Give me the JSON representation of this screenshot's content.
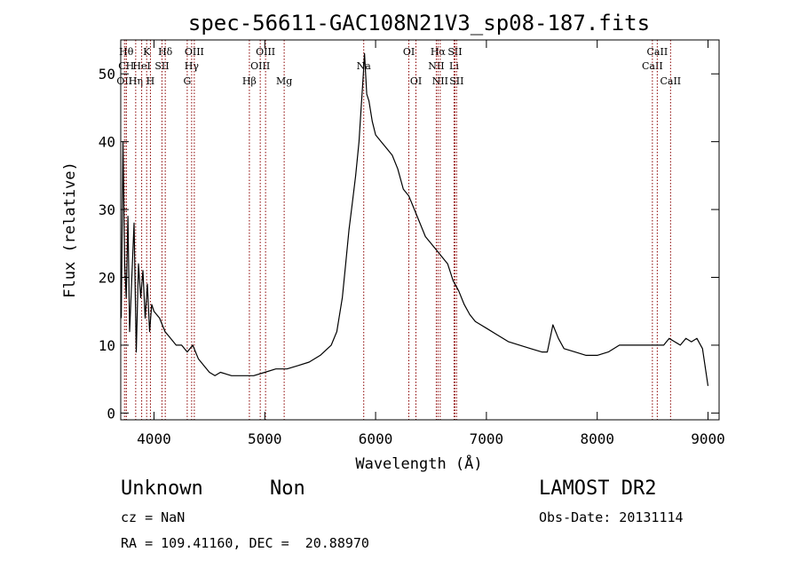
{
  "chart_data": {
    "type": "line",
    "title": "spec-56611-GAC108N21V3_sp08-187.fits",
    "xlabel": "Wavelength (Å)",
    "ylabel": "Flux (relative)",
    "xlim": [
      3700,
      9100
    ],
    "ylim": [
      -1,
      55
    ],
    "xticks": [
      4000,
      5000,
      6000,
      7000,
      8000,
      9000
    ],
    "yticks": [
      0,
      10,
      20,
      30,
      40,
      50
    ],
    "grid": false,
    "line_color": "#000000",
    "marker_line_color": "#8b0000",
    "series": [
      {
        "x": [
          3705,
          3720,
          3735,
          3750,
          3765,
          3780,
          3800,
          3820,
          3840,
          3860,
          3880,
          3900,
          3920,
          3940,
          3960,
          3980,
          4000,
          4050,
          4100,
          4150,
          4200,
          4250,
          4300,
          4350,
          4400,
          4450,
          4500,
          4550,
          4600,
          4700,
          4800,
          4900,
          5000,
          5100,
          5200,
          5300,
          5400,
          5500,
          5600,
          5650,
          5700,
          5730,
          5760,
          5790,
          5820,
          5850,
          5870,
          5890,
          5900,
          5920,
          5940,
          5970,
          6000,
          6050,
          6100,
          6150,
          6200,
          6250,
          6300,
          6350,
          6400,
          6450,
          6500,
          6550,
          6600,
          6650,
          6700,
          6750,
          6800,
          6850,
          6900,
          6950,
          7000,
          7100,
          7200,
          7300,
          7400,
          7500,
          7550,
          7600,
          7650,
          7700,
          7800,
          7900,
          8000,
          8100,
          8200,
          8300,
          8400,
          8500,
          8600,
          8650,
          8700,
          8750,
          8800,
          8850,
          8900,
          8950,
          9000
        ],
        "y": [
          14,
          40,
          22,
          17,
          29,
          12,
          20,
          28,
          9,
          22,
          17,
          21,
          14,
          19,
          12,
          16,
          15,
          14,
          12,
          11,
          10,
          10,
          9,
          10,
          8,
          7,
          6,
          5.5,
          6,
          5.5,
          5.5,
          5.5,
          6,
          6.5,
          6.5,
          7,
          7.5,
          8.5,
          10,
          12,
          17,
          22,
          27,
          31,
          35,
          40,
          45,
          50,
          53,
          47,
          46,
          43,
          41,
          40,
          39,
          38,
          36,
          33,
          32,
          30,
          28,
          26,
          25,
          24,
          23,
          22,
          19.5,
          18,
          16,
          14.5,
          13.5,
          13,
          12.5,
          11.5,
          10.5,
          10,
          9.5,
          9,
          9,
          13,
          11,
          9.5,
          9,
          8.5,
          8.5,
          9,
          10,
          10,
          10,
          10,
          10,
          11,
          10.5,
          10,
          11,
          10.5,
          11,
          9.5,
          4
        ]
      }
    ],
    "line_markers": [
      {
        "wave": 3734,
        "label": "OII",
        "row": 2
      },
      {
        "wave": 3750,
        "label": "Hθ",
        "row": 0
      },
      {
        "wave": 3750,
        "label": "CH",
        "row": 1
      },
      {
        "wave": 3835,
        "label": "Hη",
        "row": 2
      },
      {
        "wave": 3889,
        "label": "HeI",
        "row": 1
      },
      {
        "wave": 3934,
        "label": "K",
        "row": 0
      },
      {
        "wave": 3968,
        "label": "H",
        "row": 2
      },
      {
        "wave": 4072,
        "label": "SII",
        "row": 1
      },
      {
        "wave": 4102,
        "label": "Hδ",
        "row": 0
      },
      {
        "wave": 4300,
        "label": "G",
        "row": 2
      },
      {
        "wave": 4340,
        "label": "Hγ",
        "row": 1
      },
      {
        "wave": 4364,
        "label": "OIII",
        "row": 0
      },
      {
        "wave": 4861,
        "label": "Hβ",
        "row": 2
      },
      {
        "wave": 4959,
        "label": "OIII",
        "row": 1
      },
      {
        "wave": 5007,
        "label": "OIII",
        "row": 0
      },
      {
        "wave": 5175,
        "label": "Mg",
        "row": 2
      },
      {
        "wave": 5893,
        "label": "Na",
        "row": 1
      },
      {
        "wave": 6300,
        "label": "OI",
        "row": 0
      },
      {
        "wave": 6364,
        "label": "OI",
        "row": 2
      },
      {
        "wave": 6548,
        "label": "NII",
        "row": 1
      },
      {
        "wave": 6563,
        "label": "Hα",
        "row": 0
      },
      {
        "wave": 6583,
        "label": "NII",
        "row": 2
      },
      {
        "wave": 6708,
        "label": "Li",
        "row": 1
      },
      {
        "wave": 6716,
        "label": "SII",
        "row": 0
      },
      {
        "wave": 6731,
        "label": "SII",
        "row": 2
      },
      {
        "wave": 8498,
        "label": "CaII",
        "row": 1
      },
      {
        "wave": 8542,
        "label": "CaII",
        "row": 0
      },
      {
        "wave": 8662,
        "label": "CaII",
        "row": 2
      }
    ]
  },
  "info": {
    "object_class": "Unknown",
    "subclass": "Non",
    "survey": "LAMOST DR2",
    "cz": "cz = NaN",
    "obs_date": "Obs-Date: 20131114",
    "coords": "RA = 109.41160, DEC =  20.88970"
  }
}
